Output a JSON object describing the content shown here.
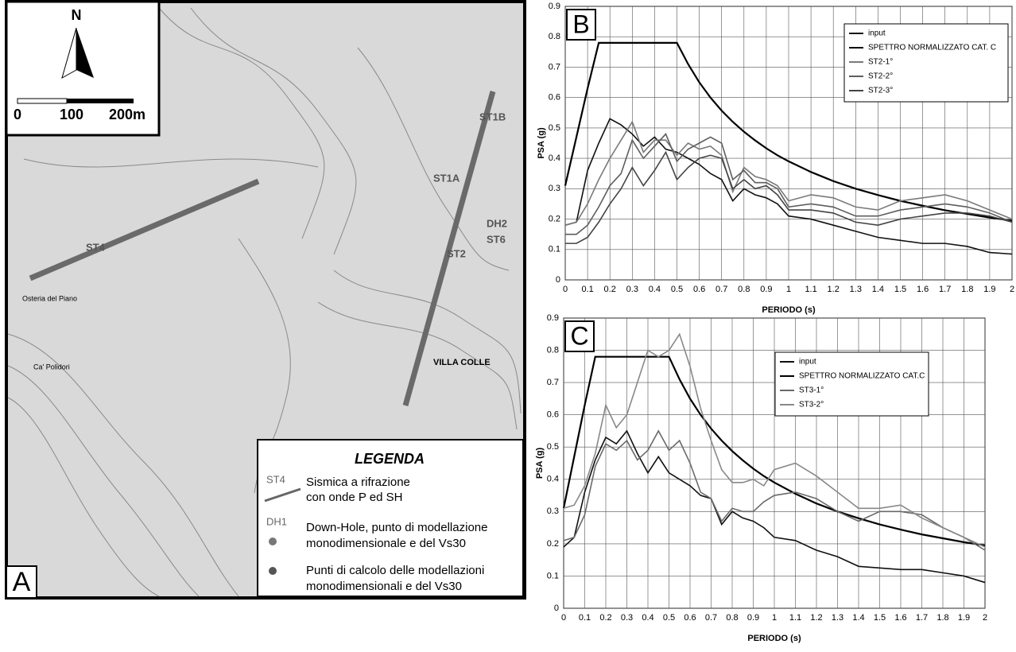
{
  "map": {
    "panel": "A",
    "north": "N",
    "scale": [
      "0",
      "100",
      "200m"
    ],
    "places": [
      "Osteria del Piano",
      "Ca' Polidori",
      "VILLA COLLE",
      "ST4",
      "ST1A",
      "ST1B",
      "ST2",
      "DH2",
      "ST6"
    ],
    "legend": {
      "title": "LEGENDA",
      "items": [
        {
          "symbol": "ST4",
          "lines": [
            "Sismica a rifrazione",
            "con onde P ed SH"
          ]
        },
        {
          "symbol": "DH1",
          "lines": [
            "Down-Hole, punto di modellazione",
            "monodimensionale e del Vs30"
          ]
        },
        {
          "lines": [
            "Punti di calcolo delle modellazioni",
            "monodimensionali e del Vs30"
          ]
        }
      ]
    }
  },
  "chart_data": [
    {
      "type": "line",
      "panel": "B",
      "x_label": "PERIODO (s)",
      "y_label": "PSA (g)",
      "x": [
        0,
        0.05,
        0.1,
        0.15,
        0.2,
        0.25,
        0.3,
        0.35,
        0.4,
        0.45,
        0.5,
        0.55,
        0.6,
        0.65,
        0.7,
        0.75,
        0.8,
        0.85,
        0.9,
        0.95,
        1.0,
        1.1,
        1.2,
        1.3,
        1.4,
        1.5,
        1.6,
        1.7,
        1.8,
        1.9,
        2.0
      ],
      "xlim": [
        0,
        2
      ],
      "xticks": [
        0,
        0.1,
        0.2,
        0.3,
        0.4,
        0.5,
        0.6,
        0.7,
        0.8,
        0.9,
        1,
        1.1,
        1.2,
        1.3,
        1.4,
        1.5,
        1.6,
        1.7,
        1.8,
        1.9,
        2
      ],
      "ylim": [
        0,
        0.9
      ],
      "yticks": [
        0,
        0.1,
        0.2,
        0.3,
        0.4,
        0.5,
        0.6,
        0.7,
        0.8,
        0.9
      ],
      "grid": true,
      "series": [
        {
          "name": "input",
          "color": "#111111",
          "values": [
            0.18,
            0.19,
            0.36,
            0.45,
            0.53,
            0.51,
            0.48,
            0.44,
            0.47,
            0.43,
            0.42,
            0.4,
            0.38,
            0.35,
            0.33,
            0.26,
            0.3,
            0.28,
            0.27,
            0.25,
            0.21,
            0.2,
            0.18,
            0.16,
            0.14,
            0.13,
            0.12,
            0.12,
            0.11,
            0.09,
            0.085
          ]
        },
        {
          "name": "SPETTRO NORMALIZZATO CAT. C",
          "color": "#000000",
          "values": [
            0.31,
            0.47,
            0.63,
            0.78,
            0.78,
            0.78,
            0.78,
            0.78,
            0.78,
            0.78,
            0.78,
            0.71,
            0.65,
            0.6,
            0.557,
            0.52,
            0.4875,
            0.459,
            0.433,
            0.41,
            0.39,
            0.355,
            0.325,
            0.3,
            0.279,
            0.26,
            0.244,
            0.229,
            0.217,
            0.205,
            0.195
          ]
        },
        {
          "name": "ST2-1°",
          "color": "#7a7a7a",
          "values": [
            0.18,
            0.19,
            0.25,
            0.33,
            0.4,
            0.46,
            0.52,
            0.42,
            0.46,
            0.46,
            0.41,
            0.45,
            0.43,
            0.44,
            0.41,
            0.29,
            0.37,
            0.34,
            0.33,
            0.31,
            0.26,
            0.28,
            0.27,
            0.24,
            0.23,
            0.26,
            0.27,
            0.28,
            0.26,
            0.23,
            0.2
          ]
        },
        {
          "name": "ST2-2°",
          "color": "#5e5e5e",
          "values": [
            0.15,
            0.15,
            0.18,
            0.24,
            0.31,
            0.35,
            0.46,
            0.4,
            0.44,
            0.48,
            0.39,
            0.43,
            0.45,
            0.47,
            0.45,
            0.33,
            0.36,
            0.32,
            0.32,
            0.3,
            0.24,
            0.25,
            0.24,
            0.21,
            0.21,
            0.23,
            0.24,
            0.25,
            0.24,
            0.22,
            0.19
          ]
        },
        {
          "name": "ST2-3°",
          "color": "#444444",
          "values": [
            0.12,
            0.12,
            0.14,
            0.19,
            0.25,
            0.3,
            0.37,
            0.31,
            0.36,
            0.42,
            0.33,
            0.37,
            0.4,
            0.41,
            0.4,
            0.3,
            0.33,
            0.3,
            0.31,
            0.28,
            0.23,
            0.23,
            0.22,
            0.19,
            0.18,
            0.2,
            0.21,
            0.22,
            0.22,
            0.21,
            0.19
          ]
        }
      ]
    },
    {
      "type": "line",
      "panel": "C",
      "x_label": "PERIODO (s)",
      "y_label": "PSA (g)",
      "x": [
        0,
        0.05,
        0.1,
        0.15,
        0.2,
        0.25,
        0.3,
        0.35,
        0.4,
        0.45,
        0.5,
        0.55,
        0.6,
        0.65,
        0.7,
        0.75,
        0.8,
        0.85,
        0.9,
        0.95,
        1.0,
        1.1,
        1.2,
        1.3,
        1.4,
        1.5,
        1.6,
        1.7,
        1.8,
        1.9,
        2.0
      ],
      "xlim": [
        0,
        2
      ],
      "xticks": [
        0,
        0.1,
        0.2,
        0.3,
        0.4,
        0.5,
        0.6,
        0.7,
        0.8,
        0.9,
        1,
        1.1,
        1.2,
        1.3,
        1.4,
        1.5,
        1.6,
        1.7,
        1.8,
        1.9,
        2
      ],
      "ylim": [
        0,
        0.9
      ],
      "yticks": [
        0,
        0.1,
        0.2,
        0.3,
        0.4,
        0.5,
        0.6,
        0.7,
        0.8,
        0.9
      ],
      "grid": true,
      "series": [
        {
          "name": "input",
          "color": "#111111",
          "values": [
            0.19,
            0.22,
            0.36,
            0.46,
            0.53,
            0.51,
            0.55,
            0.48,
            0.42,
            0.47,
            0.42,
            0.4,
            0.38,
            0.35,
            0.34,
            0.26,
            0.3,
            0.28,
            0.27,
            0.25,
            0.22,
            0.21,
            0.18,
            0.16,
            0.13,
            0.125,
            0.12,
            0.12,
            0.11,
            0.1,
            0.08
          ]
        },
        {
          "name": "SPETTRO NORMALIZZATO CAT.C",
          "color": "#000000",
          "values": [
            0.31,
            0.47,
            0.63,
            0.78,
            0.78,
            0.78,
            0.78,
            0.78,
            0.78,
            0.78,
            0.78,
            0.71,
            0.65,
            0.6,
            0.557,
            0.52,
            0.4875,
            0.459,
            0.433,
            0.41,
            0.39,
            0.355,
            0.325,
            0.3,
            0.279,
            0.26,
            0.244,
            0.229,
            0.217,
            0.205,
            0.195
          ]
        },
        {
          "name": "ST3-1°",
          "color": "#6a6a6a",
          "values": [
            0.21,
            0.22,
            0.29,
            0.44,
            0.51,
            0.49,
            0.52,
            0.46,
            0.49,
            0.55,
            0.49,
            0.52,
            0.45,
            0.36,
            0.34,
            0.27,
            0.31,
            0.3,
            0.3,
            0.33,
            0.35,
            0.36,
            0.34,
            0.3,
            0.27,
            0.3,
            0.3,
            0.29,
            0.25,
            0.22,
            0.18
          ]
        },
        {
          "name": "ST3-2°",
          "color": "#888888",
          "values": [
            0.31,
            0.32,
            0.38,
            0.48,
            0.63,
            0.56,
            0.6,
            0.7,
            0.8,
            0.78,
            0.8,
            0.85,
            0.75,
            0.62,
            0.52,
            0.43,
            0.39,
            0.39,
            0.4,
            0.38,
            0.43,
            0.45,
            0.41,
            0.36,
            0.31,
            0.31,
            0.32,
            0.28,
            0.25,
            0.22,
            0.19
          ]
        }
      ]
    }
  ]
}
